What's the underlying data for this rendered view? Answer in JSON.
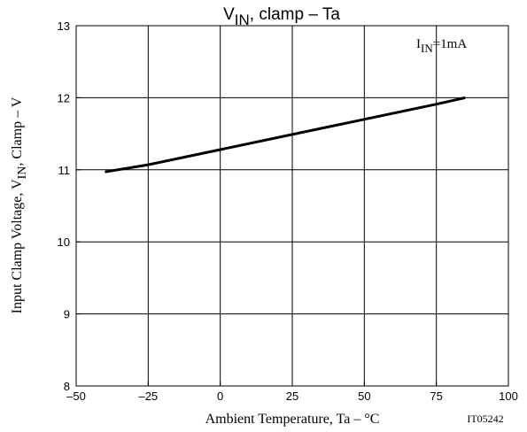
{
  "chart_data": {
    "type": "line",
    "title": {
      "main": "V",
      "sub": "IN",
      "rest": ", clamp  –  Ta"
    },
    "xlabel": "Ambient Temperature, Ta  –  °C",
    "ylabel": {
      "pre": "Input Clamp Voltage, V",
      "sub": "IN",
      "post": ", Clamp  –  V"
    },
    "annotation": {
      "pre": "I",
      "sub": "IN",
      "post": "=1mA"
    },
    "figure_id": "IT05242",
    "xlim": [
      -50,
      100
    ],
    "ylim": [
      8,
      13
    ],
    "xticks": [
      -50,
      -25,
      0,
      25,
      50,
      75,
      100
    ],
    "xtick_labels": [
      "–50",
      "–25",
      "0",
      "25",
      "50",
      "75",
      "100"
    ],
    "yticks": [
      8,
      9,
      10,
      11,
      12,
      13
    ],
    "ytick_labels": [
      "8",
      "9",
      "10",
      "11",
      "12",
      "13"
    ],
    "grid": true,
    "series": [
      {
        "x": [
          -40,
          -25,
          0,
          25,
          50,
          75,
          85
        ],
        "y": [
          10.97,
          11.07,
          11.28,
          11.49,
          11.7,
          11.91,
          12.0
        ]
      }
    ]
  }
}
